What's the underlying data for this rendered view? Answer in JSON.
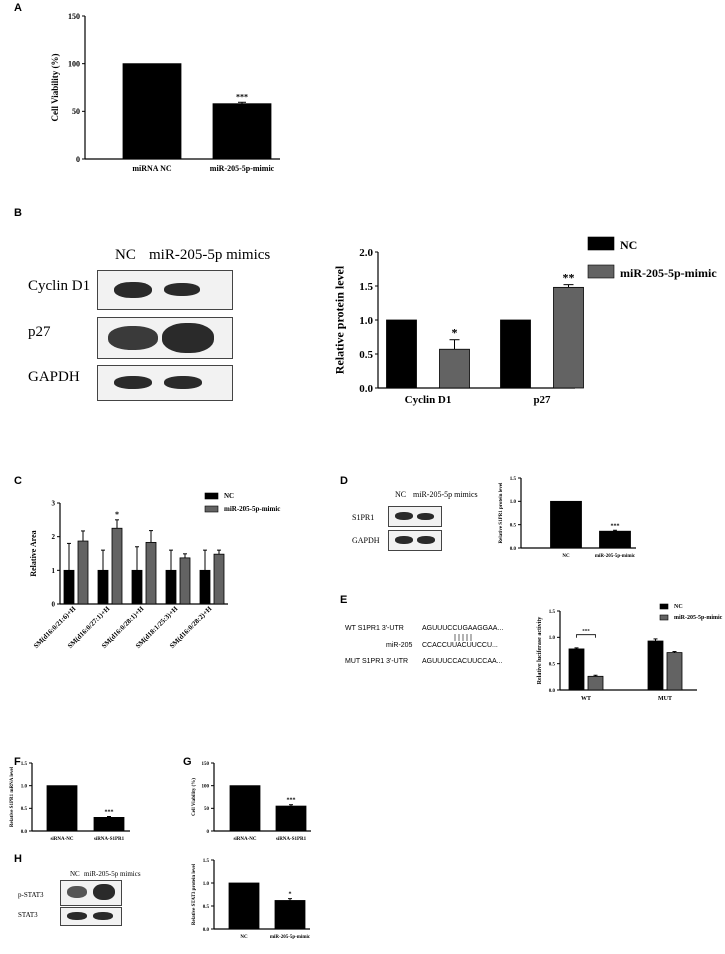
{
  "panel_labels": {
    "A": "A",
    "B": "B",
    "C": "C",
    "D": "D",
    "E": "E",
    "F": "F",
    "G": "G",
    "H": "H"
  },
  "colors": {
    "nc": "#000000",
    "mimic": "#636363"
  },
  "blots": {
    "B": {
      "lanes": [
        "NC",
        "miR-205-5p mimics"
      ],
      "rows": [
        "Cyclin D1",
        "p27",
        "GAPDH"
      ]
    },
    "D": {
      "lanes": [
        "NC",
        "miR-205-5p mimics"
      ],
      "rows": [
        "S1PR1",
        "GAPDH"
      ]
    },
    "H": {
      "lanes": [
        "NC",
        "miR-205-5p mimics"
      ],
      "rows": [
        "p-STAT3",
        "STAT3"
      ]
    }
  },
  "sequences": {
    "rows": [
      {
        "name": "WT S1PR1 3'-UTR",
        "seq": "AGUUUCCUGAAGGAA..."
      },
      {
        "name": "miR-205",
        "seq": "CCACCUUACUUCCU..."
      },
      {
        "name": "MUT S1PR1 3'-UTR",
        "seq": "AGUUUCCACUUCCAA..."
      }
    ]
  },
  "chart_data": [
    {
      "id": "A",
      "type": "bar",
      "categories": [
        "miRNA NC",
        "miR-205-5p-mimic"
      ],
      "values": [
        100,
        58
      ],
      "errors": [
        0,
        1.5
      ],
      "annotations": [
        "",
        "***"
      ],
      "ylabel": "Cell Viability (%)",
      "ylim": [
        0,
        150
      ],
      "yticks": [
        0,
        50,
        100,
        150
      ],
      "colors": [
        "#000000",
        "#000000"
      ]
    },
    {
      "id": "B",
      "type": "bar",
      "categories": [
        "Cyclin D1",
        "p27"
      ],
      "series": [
        {
          "name": "NC",
          "values": [
            1.0,
            1.0
          ],
          "errors": [
            0,
            0
          ]
        },
        {
          "name": "miR-205-5p-mimic",
          "values": [
            0.57,
            1.48
          ],
          "errors": [
            0.14,
            0.04
          ]
        }
      ],
      "annotations": [
        [
          "",
          "*"
        ],
        [
          "",
          "**"
        ]
      ],
      "ylabel": "Relative protein level",
      "ylim": [
        0,
        2.0
      ],
      "yticks": [
        "0.0",
        "0.5",
        "1.0",
        "1.5",
        "2.0"
      ],
      "legend": "top-right"
    },
    {
      "id": "C",
      "type": "bar",
      "categories": [
        "SM(d16:0/21:6)+H",
        "SM(d16:0/27:1)+H",
        "SM(d16:0/28:1)+H",
        "SM(d18:1/25:3)+H",
        "SM(d16:0/28:2)+H"
      ],
      "series": [
        {
          "name": "NC",
          "values": [
            1.0,
            1.0,
            1.0,
            1.0,
            1.0
          ],
          "errors": [
            0.8,
            0.6,
            0.7,
            0.6,
            0.6
          ]
        },
        {
          "name": "miR-205-5p-mimic",
          "values": [
            1.87,
            2.25,
            1.83,
            1.37,
            1.48
          ],
          "errors": [
            0.3,
            0.25,
            0.35,
            0.12,
            0.12
          ]
        }
      ],
      "annotations": [
        [
          "",
          ""
        ],
        [
          "",
          "*"
        ],
        [
          "",
          ""
        ],
        [
          "",
          ""
        ],
        [
          "",
          ""
        ]
      ],
      "ylabel": "Relative Area",
      "ylim": [
        0,
        3
      ],
      "yticks": [
        "0",
        "1",
        "2",
        "3"
      ],
      "legend": "top-right"
    },
    {
      "id": "D",
      "type": "bar",
      "categories": [
        "NC",
        "miR-205-5p-mimic"
      ],
      "values": [
        1.0,
        0.36
      ],
      "errors": [
        0,
        0.02
      ],
      "annotations": [
        "",
        "***"
      ],
      "ylabel": "Relative S1PR1 protein level",
      "ylim": [
        0,
        1.5
      ],
      "yticks": [
        "0.0",
        "0.5",
        "1.0",
        "1.5"
      ],
      "colors": [
        "#000000",
        "#000000"
      ]
    },
    {
      "id": "E",
      "type": "bar",
      "categories": [
        "WT",
        "MUT"
      ],
      "series": [
        {
          "name": "NC",
          "values": [
            0.78,
            0.93
          ],
          "errors": [
            0.02,
            0.04
          ]
        },
        {
          "name": "miR-205-5p-mimic",
          "values": [
            0.26,
            0.71
          ],
          "errors": [
            0.02,
            0.02
          ]
        }
      ],
      "annotations": [
        "***",
        ""
      ],
      "ylabel": "Relative luciferase activity",
      "ylim": [
        0,
        1.5
      ],
      "yticks": [
        "0.0",
        "0.5",
        "1.0",
        "1.5"
      ],
      "legend": "top-right"
    },
    {
      "id": "F",
      "type": "bar",
      "categories": [
        "siRNA-NC",
        "siRNA-S1PR1"
      ],
      "values": [
        1.0,
        0.3
      ],
      "errors": [
        0,
        0.02
      ],
      "annotations": [
        "",
        "***"
      ],
      "ylabel": "Relative S1PR1 mRNA level",
      "ylim": [
        0,
        1.5
      ],
      "yticks": [
        "0.0",
        "0.5",
        "1.0",
        "1.5"
      ],
      "colors": [
        "#000000",
        "#000000"
      ]
    },
    {
      "id": "G",
      "type": "bar",
      "categories": [
        "siRNA-NC",
        "siRNA-S1PR1"
      ],
      "values": [
        100,
        55
      ],
      "errors": [
        0,
        3
      ],
      "annotations": [
        "",
        "***"
      ],
      "ylabel": "Cell Viability (%)",
      "ylim": [
        0,
        150
      ],
      "yticks": [
        0,
        50,
        100,
        150
      ],
      "colors": [
        "#000000",
        "#000000"
      ]
    },
    {
      "id": "H",
      "type": "bar",
      "categories": [
        "NC",
        "miR-205-5p-mimic"
      ],
      "values": [
        1.0,
        0.62
      ],
      "errors": [
        0,
        0.04
      ],
      "annotations": [
        "",
        "*"
      ],
      "ylabel": "Relative STAT3 protein level",
      "ylim": [
        0,
        1.5
      ],
      "yticks": [
        "0.0",
        "0.5",
        "1.0",
        "1.5"
      ],
      "colors": [
        "#000000",
        "#000000"
      ]
    }
  ]
}
